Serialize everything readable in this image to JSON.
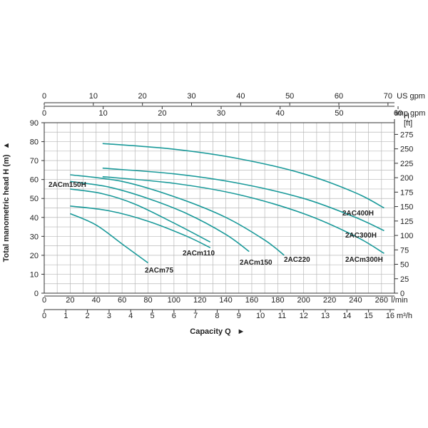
{
  "chart_data": {
    "type": "line",
    "xlabel": "Capacity Q",
    "ylabel": "Total manometric head H (m)",
    "ylim": [
      0,
      90
    ],
    "xlim_lmin": [
      0,
      270
    ],
    "grid": true,
    "axes": {
      "left": {
        "label": "Total manometric head H (m)",
        "ticks": [
          "0",
          "10",
          "20",
          "30",
          "40",
          "50",
          "60",
          "70",
          "80",
          "90"
        ]
      },
      "right": {
        "title_top": "H",
        "unit": "[ft]",
        "ticks": [
          "0",
          "25",
          "50",
          "75",
          "100",
          "125",
          "150",
          "175",
          "200",
          "225",
          "250",
          "275"
        ]
      },
      "bottom_lmin": {
        "unit": "l/min",
        "ticks": [
          "0",
          "20",
          "40",
          "60",
          "80",
          "100",
          "120",
          "140",
          "160",
          "180",
          "200",
          "220",
          "240",
          "260"
        ]
      },
      "bottom_m3h": {
        "unit": "m³/h",
        "ticks": [
          "0",
          "1",
          "2",
          "3",
          "4",
          "5",
          "6",
          "7",
          "8",
          "9",
          "10",
          "11",
          "12",
          "13",
          "14",
          "15",
          "16"
        ]
      },
      "top_usgpm": {
        "unit": "US gpm",
        "ticks": [
          "0",
          "10",
          "20",
          "30",
          "40",
          "50",
          "60",
          "70"
        ]
      },
      "top_impgpm": {
        "unit": "Imp gpm",
        "ticks": [
          "0",
          "10",
          "20",
          "30",
          "40",
          "50",
          "60"
        ]
      }
    },
    "arrows": {
      "y": "▲",
      "x": "►"
    },
    "series": [
      {
        "name": "2ACm75",
        "x": [
          20,
          40,
          60,
          80
        ],
        "y": [
          42,
          36,
          26,
          16
        ]
      },
      {
        "name": "2ACm110",
        "x": [
          20,
          50,
          80,
          110,
          128
        ],
        "y": [
          46,
          43.5,
          38,
          30,
          24
        ]
      },
      {
        "name": "2ACm150H",
        "x": [
          20,
          45,
          70,
          100,
          128
        ],
        "y": [
          55,
          52.5,
          47,
          37,
          27
        ]
      },
      {
        "name": "2ACm150",
        "x": [
          20,
          50,
          80,
          110,
          140,
          158
        ],
        "y": [
          59,
          56,
          50,
          42,
          31,
          22
        ]
      },
      {
        "name": "2AC220",
        "x": [
          20,
          60,
          100,
          140,
          170,
          185
        ],
        "y": [
          62.5,
          59,
          51,
          40,
          28,
          20
        ]
      },
      {
        "name": "2ACm300H",
        "x": [
          45,
          100,
          150,
          200,
          240,
          262
        ],
        "y": [
          61.5,
          58,
          52,
          42,
          30,
          21
        ]
      },
      {
        "name": "2AC300H",
        "x": [
          45,
          100,
          150,
          200,
          240,
          262
        ],
        "y": [
          66,
          63,
          58,
          50,
          40,
          33
        ]
      },
      {
        "name": "2AC400H",
        "x": [
          45,
          100,
          150,
          200,
          240,
          262
        ],
        "y": [
          79,
          76,
          71,
          63,
          53,
          45
        ]
      }
    ],
    "labels": [
      {
        "series": "2ACm150H",
        "text": "2ACm150H"
      },
      {
        "series": "2ACm110",
        "text": "2ACm110"
      },
      {
        "series": "2ACm75",
        "text": "2ACm75"
      },
      {
        "series": "2ACm150",
        "text": "2ACm150"
      },
      {
        "series": "2AC220",
        "text": "2AC220"
      },
      {
        "series": "2AC400H",
        "text": "2AC400H"
      },
      {
        "series": "2AC300H",
        "text": "2AC300H"
      },
      {
        "series": "2ACm300H",
        "text": "2ACm300H"
      }
    ],
    "colors": {
      "curve": "#1a9a9a",
      "grid": "#b8b8b8",
      "axis": "#333333"
    }
  }
}
